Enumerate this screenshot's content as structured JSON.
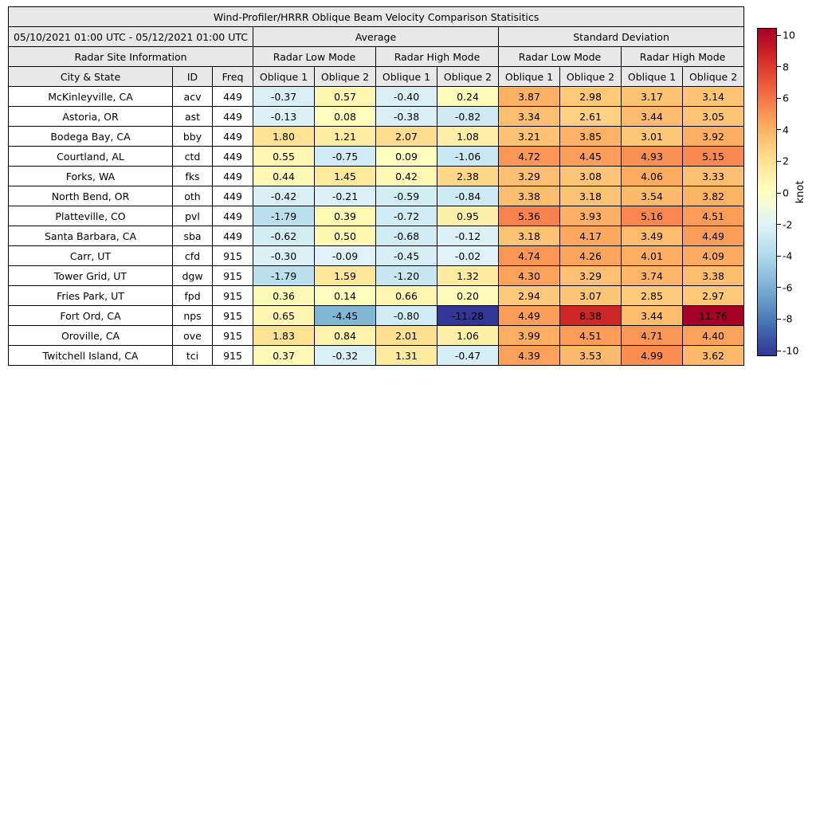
{
  "title": "Wind-Profiler/HRRR Oblique Beam Velocity Comparison Statisitics",
  "header": {
    "date_range": "05/10/2021 01:00 UTC - 05/12/2021 01:00 UTC",
    "average": "Average",
    "std_dev": "Standard Deviation",
    "site_info": "Radar Site Information",
    "low_mode": "Radar Low Mode",
    "high_mode": "Radar High Mode",
    "col_city": "City & State",
    "col_id": "ID",
    "col_freq": "Freq",
    "oblique1": "Oblique 1",
    "oblique2": "Oblique 2"
  },
  "colorbar": {
    "label": "knot",
    "vmax": 10,
    "vmin": -10,
    "ticks": [
      10,
      8,
      6,
      4,
      2,
      0,
      -2,
      -4,
      -6,
      -8,
      -10
    ],
    "gradient_top_to_bottom": [
      "#a50026",
      "#d73027",
      "#f46d43",
      "#fdae61",
      "#fee090",
      "#ffffbf",
      "#e0f3f8",
      "#abd9e9",
      "#74add1",
      "#4575b4",
      "#313695"
    ],
    "positive_stops": [
      {
        "v": 0,
        "c": "#ffffbf"
      },
      {
        "v": 2,
        "c": "#fee090"
      },
      {
        "v": 4,
        "c": "#fdae61"
      },
      {
        "v": 6,
        "c": "#f46d43"
      },
      {
        "v": 8,
        "c": "#d73027"
      },
      {
        "v": 10,
        "c": "#a50026"
      }
    ],
    "negative_stops": [
      {
        "v": 0,
        "c": "#e0f3f8"
      },
      {
        "v": 2.5,
        "c": "#abd9e9"
      },
      {
        "v": 5,
        "c": "#74add1"
      },
      {
        "v": 7.5,
        "c": "#4575b4"
      },
      {
        "v": 10,
        "c": "#313695"
      }
    ]
  },
  "chart_data": {
    "type": "heatmap",
    "title": "Wind-Profiler/HRRR Oblique Beam Velocity Comparison Statisitics",
    "unit": "knot",
    "value_range": [
      -10,
      10
    ],
    "value_columns": [
      "Average / Radar Low Mode / Oblique 1",
      "Average / Radar Low Mode / Oblique 2",
      "Average / Radar High Mode / Oblique 1",
      "Average / Radar High Mode / Oblique 2",
      "Standard Deviation / Radar Low Mode / Oblique 1",
      "Standard Deviation / Radar Low Mode / Oblique 2",
      "Standard Deviation / Radar High Mode / Oblique 1",
      "Standard Deviation / Radar High Mode / Oblique 2"
    ],
    "rows": [
      {
        "city": "McKinleyville, CA",
        "id": "acv",
        "freq": "449",
        "values": [
          -0.37,
          0.57,
          -0.4,
          0.24,
          3.87,
          2.98,
          3.17,
          3.14
        ]
      },
      {
        "city": "Astoria, OR",
        "id": "ast",
        "freq": "449",
        "values": [
          -0.13,
          0.08,
          -0.38,
          -0.82,
          3.34,
          2.61,
          3.44,
          3.05
        ]
      },
      {
        "city": "Bodega Bay, CA",
        "id": "bby",
        "freq": "449",
        "values": [
          1.8,
          1.21,
          2.07,
          1.08,
          3.21,
          3.85,
          3.01,
          3.92
        ]
      },
      {
        "city": "Courtland, AL",
        "id": "ctd",
        "freq": "449",
        "values": [
          0.55,
          -0.75,
          0.09,
          -1.06,
          4.72,
          4.45,
          4.93,
          5.15
        ]
      },
      {
        "city": "Forks, WA",
        "id": "fks",
        "freq": "449",
        "values": [
          0.44,
          1.45,
          0.42,
          2.38,
          3.29,
          3.08,
          4.06,
          3.33
        ]
      },
      {
        "city": "North Bend, OR",
        "id": "oth",
        "freq": "449",
        "values": [
          -0.42,
          -0.21,
          -0.59,
          -0.84,
          3.38,
          3.18,
          3.54,
          3.82
        ]
      },
      {
        "city": "Platteville, CO",
        "id": "pvl",
        "freq": "449",
        "values": [
          -1.79,
          0.39,
          -0.72,
          0.95,
          5.36,
          3.93,
          5.16,
          4.51
        ]
      },
      {
        "city": "Santa Barbara, CA",
        "id": "sba",
        "freq": "449",
        "values": [
          -0.62,
          0.5,
          -0.68,
          -0.12,
          3.18,
          4.17,
          3.49,
          4.49
        ]
      },
      {
        "city": "Carr, UT",
        "id": "cfd",
        "freq": "915",
        "values": [
          -0.3,
          -0.09,
          -0.45,
          -0.02,
          4.74,
          4.26,
          4.01,
          4.09
        ]
      },
      {
        "city": "Tower Grid, UT",
        "id": "dgw",
        "freq": "915",
        "values": [
          -1.79,
          1.59,
          -1.2,
          1.32,
          4.3,
          3.29,
          3.74,
          3.38
        ]
      },
      {
        "city": "Fries Park, UT",
        "id": "fpd",
        "freq": "915",
        "values": [
          0.36,
          0.14,
          0.66,
          0.2,
          2.94,
          3.07,
          2.85,
          2.97
        ]
      },
      {
        "city": "Fort Ord, CA",
        "id": "nps",
        "freq": "915",
        "values": [
          0.65,
          -4.45,
          -0.8,
          -11.28,
          4.49,
          8.38,
          3.44,
          11.76
        ]
      },
      {
        "city": "Oroville, CA",
        "id": "ove",
        "freq": "915",
        "values": [
          1.83,
          0.84,
          2.01,
          1.06,
          3.99,
          4.51,
          4.71,
          4.4
        ]
      },
      {
        "city": "Twitchell Island, CA",
        "id": "tci",
        "freq": "915",
        "values": [
          0.37,
          -0.32,
          1.31,
          -0.47,
          4.39,
          3.53,
          4.99,
          3.62
        ]
      }
    ]
  }
}
